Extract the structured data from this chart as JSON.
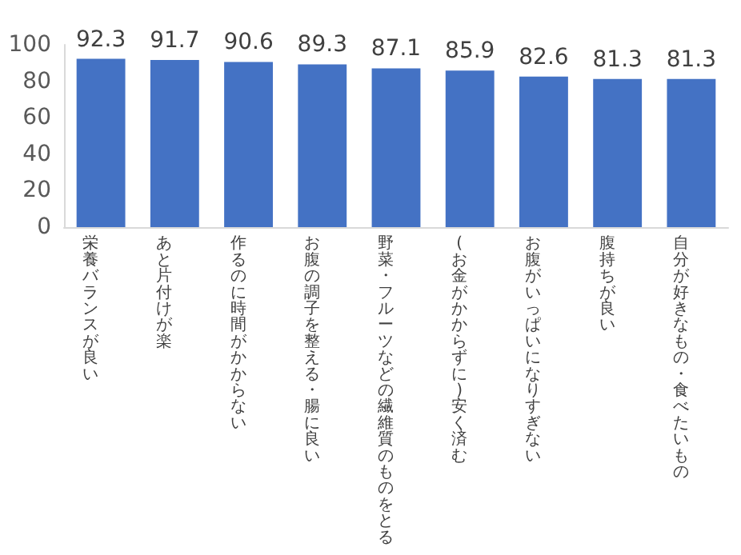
{
  "chart_data": {
    "type": "bar",
    "categories": [
      "栄養バランスが良い",
      "あと片付けが楽",
      "作るのに時間がかからない",
      "お腹の調子を整える・腸に良い",
      "野菜・フルーツなどの繊維質のものをとる",
      "(お金がかからずに)安く済む",
      "お腹がいっぱいになりすぎない",
      "腹持ちが良い",
      "自分が好きなもの・食べたいもの"
    ],
    "values": [
      92.3,
      91.7,
      90.6,
      89.3,
      87.1,
      85.9,
      82.6,
      81.3,
      81.3
    ],
    "color": "#4472c4",
    "ylim": [
      0,
      100
    ],
    "yticks": [
      0,
      20,
      40,
      60,
      80,
      100
    ],
    "grid": false,
    "data_labels": true
  }
}
